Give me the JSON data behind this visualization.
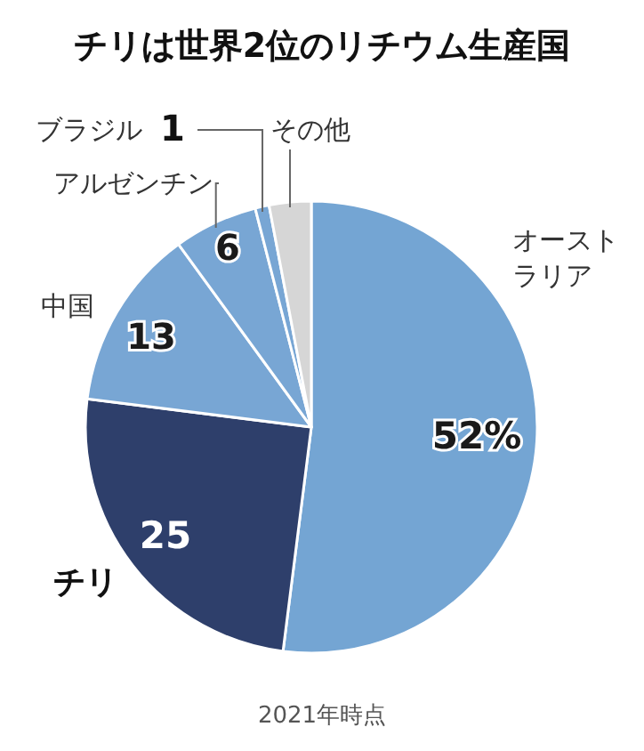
{
  "chart_data": {
    "type": "pie",
    "title": "チリは世界2位のリチウム生産国",
    "categories": [
      "オーストラリア",
      "チリ",
      "中国",
      "アルゼンチン",
      "ブラジル",
      "その他"
    ],
    "values": [
      52,
      25,
      13,
      6,
      1,
      3
    ],
    "colors": [
      "#74a5d3",
      "#2e3f6b",
      "#78a6d4",
      "#78a6d4",
      "#78a6d4",
      "#d6d6d6"
    ],
    "value_labels": [
      "52%",
      "25",
      "13",
      "6",
      "1",
      null
    ],
    "annotations": [
      "2021年時点"
    ]
  }
}
